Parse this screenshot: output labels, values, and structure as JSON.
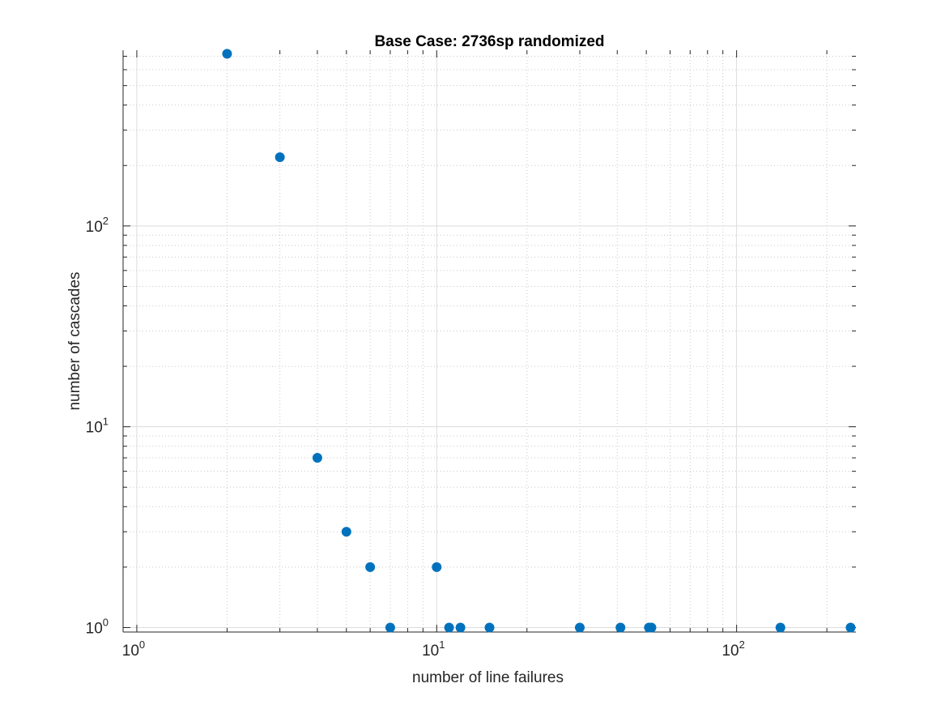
{
  "chart_data": {
    "type": "scatter",
    "title": "Base Case: 2736sp randomized",
    "xlabel": "number of line failures",
    "ylabel": "number of cascades",
    "xscale": "log",
    "yscale": "log",
    "xlim": [
      0.9,
      250
    ],
    "ylim": [
      0.95,
      750
    ],
    "grid": true,
    "minor_grid": true,
    "x_ticks": [
      {
        "base": "10",
        "exp": "0",
        "value": 1
      },
      {
        "base": "10",
        "exp": "1",
        "value": 10
      },
      {
        "base": "10",
        "exp": "2",
        "value": 100
      }
    ],
    "y_ticks": [
      {
        "base": "10",
        "exp": "0",
        "value": 1
      },
      {
        "base": "10",
        "exp": "1",
        "value": 10
      },
      {
        "base": "10",
        "exp": "2",
        "value": 100
      }
    ],
    "marker_color": "#0072BD",
    "series": [
      {
        "x": [
          2,
          3,
          4,
          5,
          6,
          7,
          10,
          11,
          12,
          15,
          30,
          41,
          51,
          52,
          140,
          240
        ],
        "y": [
          720,
          220,
          7,
          3,
          2,
          1,
          2,
          1,
          1,
          1,
          1,
          1,
          1,
          1,
          1,
          1
        ]
      }
    ]
  }
}
